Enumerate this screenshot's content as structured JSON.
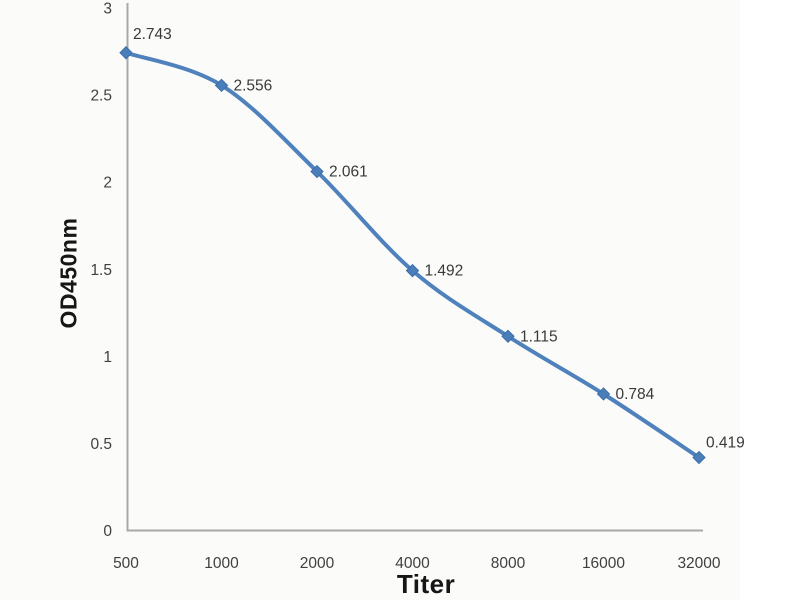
{
  "page": {
    "background": "#ffffff",
    "canvas_background": "#fbfbfa"
  },
  "chart_data": {
    "type": "line",
    "title": "",
    "xlabel": "Titer",
    "ylabel": "OD450nm",
    "categories": [
      "500",
      "1000",
      "2000",
      "4000",
      "8000",
      "16000",
      "32000"
    ],
    "values": [
      2.743,
      2.556,
      2.061,
      1.492,
      1.115,
      0.784,
      0.419
    ],
    "data_labels": [
      "2.743",
      "2.556",
      "2.061",
      "1.492",
      "1.115",
      "0.784",
      "0.419"
    ],
    "y_tick_labels": [
      "3",
      "2.5",
      "2",
      "1.5",
      "1",
      "0.5",
      "0"
    ],
    "y_tick_values": [
      3,
      2.5,
      2,
      1.5,
      1,
      0.5,
      0
    ],
    "ylim": [
      0,
      3
    ],
    "grid": false,
    "legend": "none",
    "smooth": true,
    "marker_shape": "diamond",
    "colors": {
      "line": "#4f81bd",
      "marker_fill": "#4a7ebb",
      "marker_stroke": "#3d6da8",
      "axis_line": "#a8a8a8",
      "tick_text": "#404040",
      "data_label_text": "#3a3a3a",
      "axis_title_text": "#161616"
    }
  }
}
